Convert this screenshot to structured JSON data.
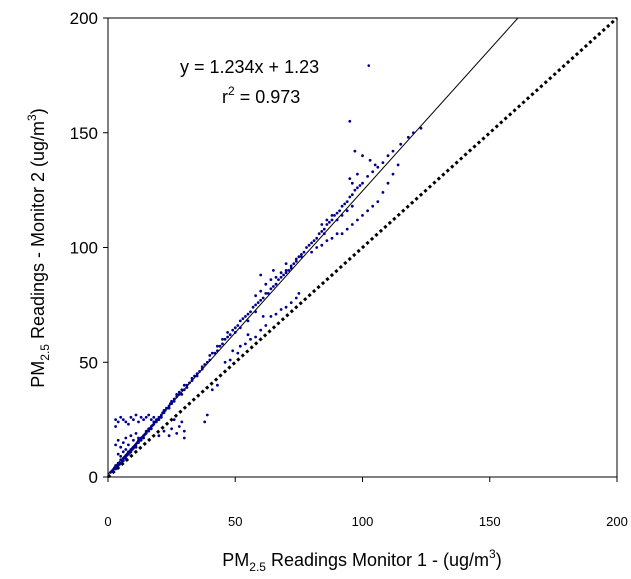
{
  "chart_data": {
    "type": "scatter",
    "xlabel": {
      "pre": "PM",
      "sub": "2.5",
      "post": " Readings Monitor 1 - (ug/m",
      "sup": "3",
      "end": ")"
    },
    "ylabel": {
      "pre": "PM",
      "sub": "2.5",
      "post": " Readings - Monitor 2 (ug/m",
      "sup": "3",
      "end": ")"
    },
    "xlim": [
      0,
      200
    ],
    "ylim": [
      0,
      200
    ],
    "x_ticks": [
      0,
      50,
      100,
      150,
      200
    ],
    "y_ticks": [
      0,
      50,
      100,
      150,
      200
    ],
    "grid": false,
    "legend": "none",
    "point_color": "#00008b",
    "regression": {
      "equation": "y = 1.234x + 1.23",
      "r2_label": {
        "pre": "r",
        "sup": "2",
        "post": " = 0.973"
      },
      "slope": 1.234,
      "intercept": 1.23,
      "line_style": "solid"
    },
    "reference_line": {
      "slope": 1,
      "intercept": 0,
      "line_style": "dotted"
    },
    "series": [
      {
        "points": [
          [
            1,
            2
          ],
          [
            1.5,
            2.5
          ],
          [
            2,
            3
          ],
          [
            2,
            2.2
          ],
          [
            2.5,
            4
          ],
          [
            3,
            3.5
          ],
          [
            3,
            5
          ],
          [
            3.5,
            4.2
          ],
          [
            4,
            5
          ],
          [
            4,
            6
          ],
          [
            4.5,
            5.5
          ],
          [
            5,
            6
          ],
          [
            5,
            7.5
          ],
          [
            5.5,
            6.8
          ],
          [
            6,
            8
          ],
          [
            6,
            7
          ],
          [
            6.5,
            8.5
          ],
          [
            7,
            9
          ],
          [
            7,
            8
          ],
          [
            7.5,
            9.5
          ],
          [
            8,
            10
          ],
          [
            8,
            11
          ],
          [
            8.5,
            10.5
          ],
          [
            9,
            11
          ],
          [
            9,
            12
          ],
          [
            9.5,
            12
          ],
          [
            10,
            12.5
          ],
          [
            10,
            13
          ],
          [
            10.5,
            13.5
          ],
          [
            11,
            14
          ],
          [
            11,
            13
          ],
          [
            11.5,
            15
          ],
          [
            12,
            15
          ],
          [
            12,
            16
          ],
          [
            12.5,
            16
          ],
          [
            13,
            16
          ],
          [
            13,
            17
          ],
          [
            13.5,
            17
          ],
          [
            14,
            18
          ],
          [
            14,
            17
          ],
          [
            14.5,
            18.5
          ],
          [
            15,
            19
          ],
          [
            15,
            20
          ],
          [
            15.5,
            20
          ],
          [
            16,
            20
          ],
          [
            16,
            21
          ],
          [
            16.5,
            21
          ],
          [
            17,
            22
          ],
          [
            17,
            21
          ],
          [
            17.5,
            22.5
          ],
          [
            18,
            23
          ],
          [
            18,
            24
          ],
          [
            18.5,
            24
          ],
          [
            19,
            24
          ],
          [
            19,
            25
          ],
          [
            19.5,
            25
          ],
          [
            20,
            25
          ],
          [
            20,
            26
          ],
          [
            20.5,
            26
          ],
          [
            21,
            27
          ],
          [
            21,
            26
          ],
          [
            21.5,
            28
          ],
          [
            22,
            28
          ],
          [
            22,
            29
          ],
          [
            22.5,
            29
          ],
          [
            23,
            30
          ],
          [
            23.5,
            30
          ],
          [
            24,
            31
          ],
          [
            24,
            30
          ],
          [
            24.5,
            32
          ],
          [
            25,
            32
          ],
          [
            25,
            33
          ],
          [
            26,
            34
          ],
          [
            26,
            33
          ],
          [
            27,
            35
          ],
          [
            27,
            36
          ],
          [
            28,
            36
          ],
          [
            28,
            37
          ],
          [
            29,
            38
          ],
          [
            29,
            36
          ],
          [
            30,
            38
          ],
          [
            30,
            40
          ],
          [
            31,
            40
          ],
          [
            31,
            39
          ],
          [
            32,
            41
          ],
          [
            33,
            42
          ],
          [
            33,
            43
          ],
          [
            34,
            44
          ],
          [
            35,
            45
          ],
          [
            35,
            44
          ],
          [
            36,
            46
          ],
          [
            37,
            48
          ],
          [
            37,
            47
          ],
          [
            38,
            49
          ],
          [
            39,
            50
          ],
          [
            40,
            51
          ],
          [
            40,
            53
          ],
          [
            41,
            54
          ],
          [
            42,
            54
          ],
          [
            43,
            55
          ],
          [
            43,
            57
          ],
          [
            44,
            57
          ],
          [
            45,
            58
          ],
          [
            45,
            60
          ],
          [
            46,
            60
          ],
          [
            47,
            61
          ],
          [
            47,
            63
          ],
          [
            48,
            62
          ],
          [
            49,
            64
          ],
          [
            50,
            65
          ],
          [
            50,
            63
          ],
          [
            51,
            66
          ],
          [
            52,
            68
          ],
          [
            52,
            65
          ],
          [
            53,
            69
          ],
          [
            54,
            70
          ],
          [
            55,
            71
          ],
          [
            55,
            68
          ],
          [
            56,
            72
          ],
          [
            57,
            74
          ],
          [
            58,
            75
          ],
          [
            58,
            72
          ],
          [
            59,
            76
          ],
          [
            60,
            77
          ],
          [
            61,
            78
          ],
          [
            62,
            80
          ],
          [
            63,
            80
          ],
          [
            64,
            82
          ],
          [
            65,
            83
          ],
          [
            66,
            84
          ],
          [
            67,
            86
          ],
          [
            68,
            87
          ],
          [
            69,
            88
          ],
          [
            70,
            89
          ],
          [
            71,
            90
          ],
          [
            72,
            92
          ],
          [
            73,
            93
          ],
          [
            74,
            95
          ],
          [
            75,
            96
          ],
          [
            76,
            97
          ],
          [
            77,
            98
          ],
          [
            78,
            100
          ],
          [
            79,
            101
          ],
          [
            80,
            102
          ],
          [
            81,
            103
          ],
          [
            82,
            104
          ],
          [
            83,
            106
          ],
          [
            84,
            107
          ],
          [
            85,
            108
          ],
          [
            86,
            110
          ],
          [
            87,
            111
          ],
          [
            88,
            112
          ],
          [
            89,
            114
          ],
          [
            90,
            115
          ],
          [
            91,
            116
          ],
          [
            92,
            118
          ],
          [
            93,
            119
          ],
          [
            94,
            120
          ],
          [
            95,
            122
          ],
          [
            96,
            123
          ],
          [
            97,
            125
          ],
          [
            98,
            126
          ],
          [
            99,
            127
          ],
          [
            100,
            128
          ],
          [
            102,
            131
          ],
          [
            104,
            133
          ],
          [
            106,
            135
          ],
          [
            108,
            137
          ],
          [
            110,
            140
          ],
          [
            112,
            142
          ],
          [
            115,
            145
          ],
          [
            118,
            148
          ],
          [
            120,
            150
          ],
          [
            123,
            152
          ],
          [
            95,
            155
          ],
          [
            97,
            142
          ],
          [
            100,
            140
          ],
          [
            103,
            138
          ],
          [
            105,
            136
          ],
          [
            3,
            22
          ],
          [
            3,
            25
          ],
          [
            4,
            24
          ],
          [
            5,
            26
          ],
          [
            6,
            25
          ],
          [
            7,
            24
          ],
          [
            8,
            23
          ],
          [
            9,
            26
          ],
          [
            10,
            25
          ],
          [
            11,
            27
          ],
          [
            12,
            24
          ],
          [
            13,
            26
          ],
          [
            14,
            25
          ],
          [
            15,
            26
          ],
          [
            16,
            27
          ],
          [
            17,
            25
          ],
          [
            18,
            26
          ],
          [
            3,
            14
          ],
          [
            4,
            16
          ],
          [
            5,
            13
          ],
          [
            6,
            15
          ],
          [
            7,
            17
          ],
          [
            8,
            14
          ],
          [
            9,
            18
          ],
          [
            10,
            16
          ],
          [
            11,
            19
          ],
          [
            12,
            17
          ],
          [
            4,
            10
          ],
          [
            5,
            9
          ],
          [
            6,
            11
          ],
          [
            7,
            12
          ],
          [
            20,
            18
          ],
          [
            22,
            20
          ],
          [
            24,
            18
          ],
          [
            25,
            21
          ],
          [
            27,
            19
          ],
          [
            28,
            22
          ],
          [
            30,
            20
          ],
          [
            30,
            17
          ],
          [
            29,
            24
          ],
          [
            26,
            25
          ],
          [
            38,
            24
          ],
          [
            39,
            27
          ],
          [
            41,
            38
          ],
          [
            43,
            40
          ],
          [
            46,
            50
          ],
          [
            48,
            51
          ],
          [
            49,
            55
          ],
          [
            51,
            54
          ],
          [
            52,
            57
          ],
          [
            54,
            58
          ],
          [
            56,
            60
          ],
          [
            55,
            62
          ],
          [
            58,
            61
          ],
          [
            60,
            64
          ],
          [
            62,
            66
          ],
          [
            61,
            70
          ],
          [
            64,
            70
          ],
          [
            66,
            71
          ],
          [
            68,
            73
          ],
          [
            70,
            74
          ],
          [
            72,
            76
          ],
          [
            74,
            78
          ],
          [
            75,
            80
          ],
          [
            58,
            79
          ],
          [
            60,
            81
          ],
          [
            62,
            84
          ],
          [
            64,
            86
          ],
          [
            66,
            87
          ],
          [
            68,
            89
          ],
          [
            70,
            90
          ],
          [
            72,
            91
          ],
          [
            60,
            88
          ],
          [
            65,
            90
          ],
          [
            70,
            93
          ],
          [
            74,
            94
          ],
          [
            76,
            96
          ],
          [
            80,
            98
          ],
          [
            82,
            100
          ],
          [
            84,
            101
          ],
          [
            86,
            103
          ],
          [
            88,
            104
          ],
          [
            90,
            106
          ],
          [
            92,
            106
          ],
          [
            94,
            108
          ],
          [
            96,
            110
          ],
          [
            98,
            112
          ],
          [
            100,
            114
          ],
          [
            102,
            116
          ],
          [
            104,
            118
          ],
          [
            106,
            120
          ],
          [
            108,
            124
          ],
          [
            110,
            128
          ],
          [
            112,
            132
          ],
          [
            114,
            136
          ],
          [
            90,
            112
          ],
          [
            92,
            114
          ],
          [
            94,
            116
          ],
          [
            96,
            118
          ],
          [
            85,
            106
          ],
          [
            84,
            110
          ],
          [
            86,
            112
          ],
          [
            88,
            114
          ],
          [
            95,
            130
          ],
          [
            96,
            128
          ],
          [
            98,
            132
          ]
        ]
      }
    ]
  }
}
